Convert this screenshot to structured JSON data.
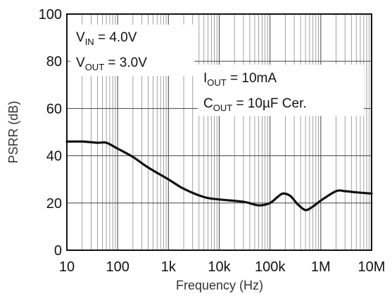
{
  "chart_data": {
    "type": "line",
    "xscale": "log",
    "xlim": [
      10,
      10000000
    ],
    "ylim": [
      0,
      100
    ],
    "xlabel": "Frequency (Hz)",
    "ylabel": "PSRR (dB)",
    "grid": true,
    "x_ticks": [
      {
        "value": 10,
        "label": "10"
      },
      {
        "value": 100,
        "label": "100"
      },
      {
        "value": 1000,
        "label": "1k"
      },
      {
        "value": 10000,
        "label": "10k"
      },
      {
        "value": 100000,
        "label": "100k"
      },
      {
        "value": 1000000,
        "label": "1M"
      },
      {
        "value": 10000000,
        "label": "10M"
      }
    ],
    "y_ticks": [
      0,
      20,
      40,
      60,
      80,
      100
    ],
    "series": [
      {
        "color": "#111111",
        "x": [
          10,
          20,
          40,
          60,
          100,
          200,
          400,
          1000,
          2000,
          5000,
          10000,
          30000,
          60000,
          100000,
          140000,
          180000,
          250000,
          350000,
          500000,
          700000,
          1000000,
          2000000,
          3000000,
          5000000,
          10000000
        ],
        "y": [
          46,
          46,
          45.5,
          45.5,
          43,
          39.5,
          35,
          30,
          26,
          22.5,
          21.5,
          20.5,
          19,
          20,
          22.5,
          24,
          23,
          19.5,
          17,
          18.5,
          21,
          25,
          25,
          24.5,
          24
        ]
      }
    ],
    "annotations": [
      {
        "id": "vin",
        "main": "V",
        "sub": "IN",
        "rest": " = 4.0V"
      },
      {
        "id": "vout",
        "main": "V",
        "sub": "OUT",
        "rest": " = 3.0V"
      },
      {
        "id": "iout",
        "main": "I",
        "sub": "OUT",
        "rest": " = 10mA"
      },
      {
        "id": "cout",
        "main": "C",
        "sub": "OUT",
        "rest": " = 10µF Cer."
      }
    ]
  }
}
